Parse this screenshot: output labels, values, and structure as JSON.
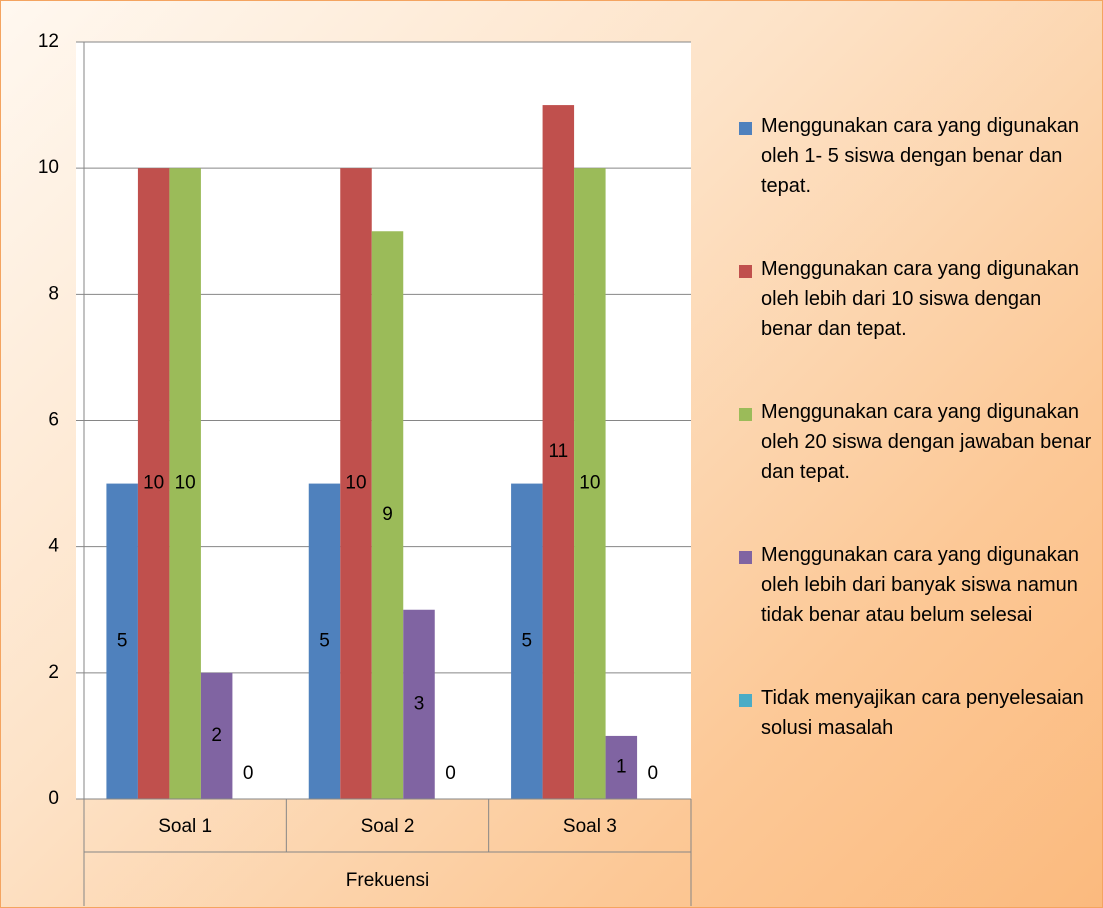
{
  "chart_data": {
    "type": "bar",
    "categories": [
      "Soal 1",
      "Soal 2",
      "Soal 3"
    ],
    "group_label": "Frekuensi",
    "series": [
      {
        "name": "Menggunakan  cara  yang digunakan  oleh 1- 5 siswa dengan benar dan tepat.",
        "color": "#4f81bd",
        "values": [
          5,
          5,
          5
        ]
      },
      {
        "name": "Menggunakan cara yang digunakan oleh lebih dari 10 siswa dengan benar dan tepat.",
        "color": "#c0504d",
        "values": [
          10,
          10,
          11
        ]
      },
      {
        "name": "Menggunakan cara yang digunakan oleh 20 siswa dengan jawaban benar  dan tepat.",
        "color": "#9bbb59",
        "values": [
          10,
          9,
          10
        ]
      },
      {
        "name": "Menggunakan cara yang digunakan oleh lebih dari banyak siswa namun tidak benar atau belum selesai",
        "color": "#8064a2",
        "values": [
          2,
          3,
          1
        ]
      },
      {
        "name": "Tidak menyajikan cara penyelesaian solusi masalah",
        "color": "#4bacc6",
        "values": [
          0,
          0,
          0
        ]
      }
    ],
    "ylim": [
      0,
      12
    ],
    "yticks": [
      0,
      2,
      4,
      6,
      8,
      10,
      12
    ],
    "grid": true,
    "legend": "right"
  }
}
